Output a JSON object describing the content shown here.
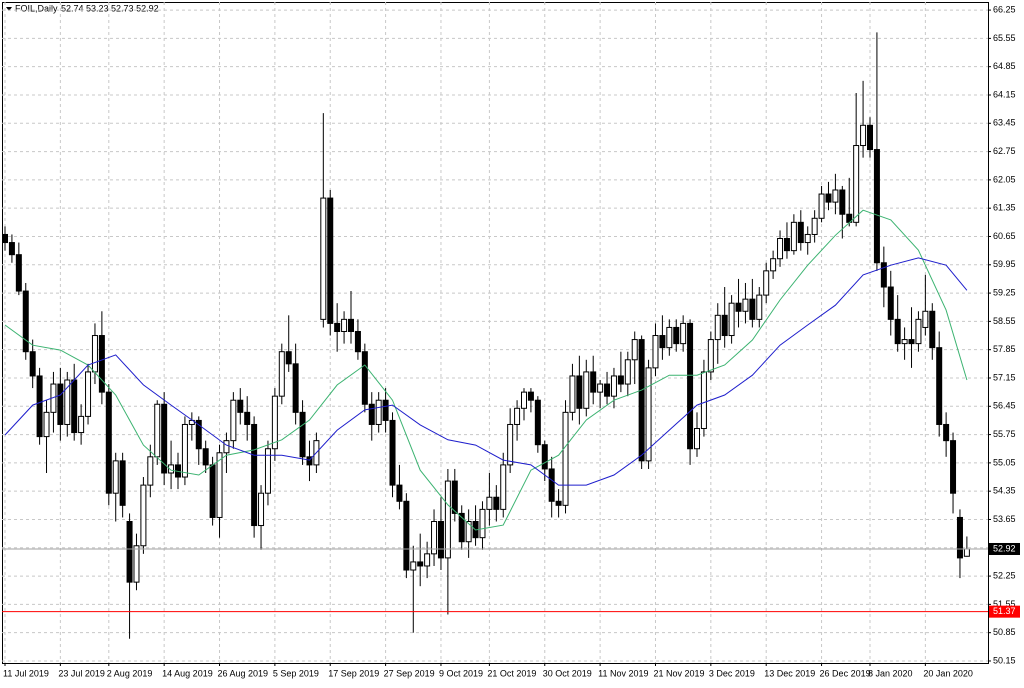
{
  "chart_data": {
    "type": "candlestick",
    "title": "FOIL,Daily",
    "ohlc_text": "52.74 53.23 52.73 52.92",
    "categories": [
      "11 Jul 2019",
      null,
      null,
      null,
      null,
      null,
      null,
      null,
      "23 Jul 2019",
      null,
      null,
      null,
      null,
      null,
      null,
      "2 Aug 2019",
      null,
      null,
      null,
      null,
      null,
      null,
      null,
      "14 Aug 2019",
      null,
      null,
      null,
      null,
      null,
      null,
      null,
      "26 Aug 2019",
      null,
      null,
      null,
      null,
      null,
      null,
      null,
      "5 Sep 2019",
      null,
      null,
      null,
      null,
      null,
      null,
      null,
      "17 Sep 2019",
      null,
      null,
      null,
      null,
      null,
      null,
      null,
      "27 Sep 2019",
      null,
      null,
      null,
      null,
      null,
      null,
      null,
      "9 Oct 2019",
      null,
      null,
      null,
      null,
      null,
      null,
      "21 Oct 2019",
      null,
      null,
      null,
      null,
      null,
      null,
      null,
      "30 Oct 2019",
      null,
      null,
      null,
      null,
      null,
      null,
      null,
      "11 Nov 2019",
      null,
      null,
      null,
      null,
      null,
      null,
      null,
      "21 Nov 2019",
      null,
      null,
      null,
      null,
      null,
      null,
      null,
      "3 Dec 2019",
      null,
      null,
      null,
      null,
      null,
      null,
      null,
      "13 Dec 2019",
      null,
      null,
      null,
      null,
      null,
      null,
      null,
      "26 Dec 2019",
      null,
      null,
      null,
      null,
      null,
      null,
      "8 Jan 2020",
      null,
      null,
      null,
      null,
      null,
      null,
      null,
      "20 Jan 2020",
      null,
      null,
      null,
      null,
      null,
      null
    ],
    "candles": [
      [
        60.7,
        60.9,
        60.3,
        60.5
      ],
      [
        60.5,
        60.7,
        60.0,
        60.2
      ],
      [
        60.2,
        60.5,
        59.2,
        59.3
      ],
      [
        59.3,
        59.5,
        57.6,
        57.8
      ],
      [
        57.8,
        58.1,
        56.9,
        57.2
      ],
      [
        57.2,
        57.4,
        55.5,
        55.7
      ],
      [
        55.7,
        56.6,
        54.8,
        56.3
      ],
      [
        56.3,
        57.3,
        55.8,
        57.0
      ],
      [
        57.0,
        57.4,
        55.6,
        56.0
      ],
      [
        56.0,
        57.3,
        55.7,
        57.1
      ],
      [
        57.1,
        57.5,
        55.6,
        55.8
      ],
      [
        55.8,
        56.5,
        55.5,
        56.2
      ],
      [
        56.2,
        57.5,
        56.0,
        57.3
      ],
      [
        57.3,
        58.5,
        57.0,
        58.2
      ],
      [
        58.2,
        58.8,
        56.5,
        56.8
      ],
      [
        56.8,
        57.0,
        54.0,
        54.3
      ],
      [
        54.3,
        55.3,
        53.6,
        55.1
      ],
      [
        55.1,
        55.3,
        53.7,
        54.0
      ],
      [
        53.6,
        53.8,
        50.7,
        52.1
      ],
      [
        52.1,
        53.3,
        51.9,
        53.0
      ],
      [
        53.0,
        54.7,
        52.8,
        54.5
      ],
      [
        54.5,
        55.5,
        54.2,
        55.2
      ],
      [
        55.2,
        56.6,
        55.0,
        56.5
      ],
      [
        56.5,
        56.8,
        54.5,
        54.8
      ],
      [
        54.8,
        55.6,
        54.4,
        55.0
      ],
      [
        55.0,
        55.3,
        54.4,
        54.7
      ],
      [
        54.7,
        56.2,
        54.5,
        56.0
      ],
      [
        56.0,
        56.3,
        55.6,
        56.1
      ],
      [
        56.1,
        56.2,
        55.0,
        55.4
      ],
      [
        55.4,
        55.6,
        54.8,
        55.0
      ],
      [
        55.0,
        55.2,
        53.5,
        53.7
      ],
      [
        53.7,
        55.5,
        53.2,
        55.3
      ],
      [
        55.3,
        55.8,
        54.8,
        55.6
      ],
      [
        55.6,
        56.8,
        55.4,
        56.6
      ],
      [
        56.6,
        56.9,
        56.0,
        56.3
      ],
      [
        56.3,
        56.7,
        55.6,
        56.0
      ],
      [
        56.0,
        56.2,
        53.2,
        53.5
      ],
      [
        53.5,
        54.5,
        52.9,
        54.3
      ],
      [
        54.3,
        55.6,
        54.0,
        55.4
      ],
      [
        55.4,
        56.9,
        55.1,
        56.7
      ],
      [
        56.7,
        58.0,
        56.5,
        57.8
      ],
      [
        57.8,
        58.7,
        57.3,
        57.5
      ],
      [
        57.5,
        58.0,
        56.0,
        56.3
      ],
      [
        56.3,
        56.6,
        55.0,
        55.2
      ],
      [
        55.2,
        55.6,
        54.6,
        55.0
      ],
      [
        55.0,
        55.8,
        54.8,
        55.6
      ],
      [
        58.6,
        63.7,
        58.4,
        61.6
      ],
      [
        61.6,
        61.8,
        58.2,
        58.5
      ],
      [
        58.5,
        59.0,
        57.8,
        58.3
      ],
      [
        58.3,
        58.8,
        58.0,
        58.6
      ],
      [
        58.6,
        59.3,
        58.0,
        58.3
      ],
      [
        58.3,
        58.6,
        57.6,
        57.8
      ],
      [
        57.8,
        58.0,
        56.3,
        56.5
      ],
      [
        56.5,
        56.8,
        55.6,
        56.0
      ],
      [
        56.0,
        56.8,
        55.8,
        56.6
      ],
      [
        56.6,
        56.9,
        55.8,
        56.1
      ],
      [
        56.1,
        56.3,
        54.2,
        54.5
      ],
      [
        54.5,
        55.0,
        53.9,
        54.1
      ],
      [
        54.1,
        54.3,
        52.2,
        52.4
      ],
      [
        52.4,
        53.0,
        50.85,
        52.6
      ],
      [
        52.6,
        53.3,
        52.0,
        52.5
      ],
      [
        52.5,
        53.1,
        52.2,
        52.8
      ],
      [
        52.8,
        53.9,
        52.5,
        53.6
      ],
      [
        53.6,
        54.2,
        52.4,
        52.7
      ],
      [
        52.7,
        54.9,
        51.3,
        54.6
      ],
      [
        54.6,
        54.9,
        53.6,
        53.8
      ],
      [
        53.8,
        54.0,
        52.9,
        53.1
      ],
      [
        53.1,
        53.9,
        52.7,
        53.6
      ],
      [
        53.6,
        54.0,
        53.0,
        53.2
      ],
      [
        53.2,
        54.1,
        52.9,
        53.9
      ],
      [
        53.9,
        54.8,
        53.5,
        54.2
      ],
      [
        54.2,
        54.5,
        53.6,
        53.9
      ],
      [
        53.9,
        55.3,
        53.7,
        55.0
      ],
      [
        55.0,
        56.4,
        54.8,
        56.0
      ],
      [
        56.0,
        56.6,
        55.6,
        56.4
      ],
      [
        56.4,
        56.9,
        56.1,
        56.8
      ],
      [
        56.8,
        56.9,
        56.3,
        56.6
      ],
      [
        56.6,
        56.7,
        55.3,
        55.5
      ],
      [
        55.5,
        55.6,
        54.6,
        54.9
      ],
      [
        54.9,
        55.2,
        53.7,
        54.1
      ],
      [
        54.1,
        54.4,
        53.7,
        54.0
      ],
      [
        54.0,
        56.6,
        53.8,
        56.3
      ],
      [
        56.3,
        57.5,
        56.1,
        57.2
      ],
      [
        57.2,
        57.7,
        56.0,
        56.4
      ],
      [
        56.4,
        57.6,
        56.2,
        57.3
      ],
      [
        57.3,
        57.7,
        56.5,
        56.8
      ],
      [
        56.8,
        57.1,
        56.4,
        57.0
      ],
      [
        57.0,
        57.3,
        56.5,
        56.7
      ],
      [
        56.7,
        57.4,
        56.4,
        57.2
      ],
      [
        57.2,
        57.8,
        56.8,
        57.0
      ],
      [
        57.0,
        57.8,
        56.7,
        57.6
      ],
      [
        57.6,
        58.3,
        57.0,
        58.1
      ],
      [
        58.1,
        58.2,
        54.9,
        55.1
      ],
      [
        55.1,
        57.6,
        54.9,
        57.4
      ],
      [
        57.4,
        58.5,
        57.2,
        58.2
      ],
      [
        58.2,
        58.7,
        57.6,
        57.9
      ],
      [
        57.9,
        58.6,
        57.7,
        58.4
      ],
      [
        58.4,
        58.6,
        57.8,
        58.0
      ],
      [
        58.0,
        58.7,
        57.8,
        58.5
      ],
      [
        58.5,
        58.6,
        55.0,
        55.4
      ],
      [
        55.4,
        56.3,
        55.2,
        55.9
      ],
      [
        55.9,
        57.6,
        55.7,
        57.3
      ],
      [
        57.3,
        58.3,
        57.1,
        58.1
      ],
      [
        58.1,
        59.0,
        57.5,
        58.7
      ],
      [
        58.7,
        59.4,
        57.9,
        58.2
      ],
      [
        58.2,
        59.2,
        58.0,
        59.0
      ],
      [
        59.0,
        59.6,
        58.4,
        58.8
      ],
      [
        58.8,
        59.5,
        58.5,
        59.1
      ],
      [
        59.1,
        59.6,
        58.4,
        58.6
      ],
      [
        58.6,
        59.4,
        58.4,
        59.2
      ],
      [
        59.2,
        60.0,
        59.0,
        59.8
      ],
      [
        59.8,
        60.3,
        59.6,
        60.1
      ],
      [
        60.1,
        60.8,
        59.9,
        60.6
      ],
      [
        60.6,
        61.0,
        60.1,
        60.3
      ],
      [
        60.3,
        61.2,
        60.2,
        61.0
      ],
      [
        61.0,
        61.3,
        60.3,
        60.5
      ],
      [
        60.5,
        60.9,
        60.2,
        60.7
      ],
      [
        60.7,
        61.3,
        60.5,
        61.1
      ],
      [
        61.1,
        61.9,
        61.0,
        61.7
      ],
      [
        61.7,
        62.0,
        61.3,
        61.5
      ],
      [
        61.5,
        62.2,
        61.2,
        61.8
      ],
      [
        61.8,
        61.9,
        60.6,
        61.2
      ],
      [
        61.2,
        62.1,
        60.9,
        61.0
      ],
      [
        61.0,
        64.2,
        60.9,
        62.9
      ],
      [
        62.9,
        64.5,
        62.6,
        63.4
      ],
      [
        63.4,
        63.6,
        62.6,
        62.8
      ],
      [
        62.8,
        65.7,
        59.8,
        60.0
      ],
      [
        60.0,
        60.4,
        58.9,
        59.4
      ],
      [
        59.4,
        59.8,
        58.2,
        58.6
      ],
      [
        58.6,
        59.2,
        57.8,
        58.0
      ],
      [
        58.0,
        58.4,
        57.6,
        58.1
      ],
      [
        58.1,
        58.9,
        57.4,
        58.0
      ],
      [
        58.0,
        58.8,
        57.8,
        58.6
      ],
      [
        58.4,
        59.7,
        58.2,
        58.8
      ],
      [
        58.8,
        59.0,
        57.6,
        57.9
      ],
      [
        57.9,
        58.3,
        55.7,
        56.0
      ],
      [
        56.0,
        56.3,
        55.2,
        55.6
      ],
      [
        55.6,
        55.8,
        53.8,
        54.3
      ],
      [
        53.7,
        53.9,
        52.2,
        52.7
      ],
      [
        52.74,
        53.23,
        52.73,
        52.92
      ]
    ],
    "bull_color": "#ffffff",
    "bear_color": "#000000",
    "overlays": [
      {
        "color": "#3cb371",
        "x": [
          0,
          4,
          8,
          12,
          16,
          20,
          24,
          28,
          32,
          36,
          40,
          44,
          48,
          52,
          56,
          60,
          64,
          68,
          72,
          76,
          80,
          84,
          88,
          92,
          96,
          100,
          104,
          108,
          112,
          116,
          120,
          124,
          128,
          132,
          136,
          139
        ],
        "values": [
          58.46,
          57.96,
          57.84,
          57.47,
          56.73,
          55.49,
          54.87,
          54.75,
          55.24,
          55.37,
          55.62,
          56.11,
          56.98,
          57.47,
          56.6,
          54.87,
          54.01,
          53.39,
          53.51,
          54.87,
          55.24,
          56.11,
          56.6,
          56.85,
          57.22,
          57.22,
          57.47,
          58.09,
          59.08,
          59.94,
          60.68,
          61.3,
          61.06,
          60.31,
          58.83,
          57.1
        ]
      },
      {
        "color": "#1e1ecc",
        "x": [
          0,
          4,
          8,
          12,
          16,
          20,
          24,
          28,
          32,
          36,
          40,
          44,
          48,
          52,
          56,
          60,
          64,
          68,
          72,
          76,
          80,
          84,
          88,
          92,
          96,
          100,
          104,
          108,
          112,
          116,
          120,
          124,
          128,
          132,
          136,
          139
        ],
        "values": [
          55.74,
          56.48,
          56.73,
          57.47,
          57.72,
          56.98,
          56.48,
          55.99,
          55.49,
          55.24,
          55.24,
          55.12,
          55.86,
          56.36,
          56.48,
          55.99,
          55.62,
          55.49,
          55.12,
          55.0,
          54.5,
          54.5,
          54.75,
          55.24,
          55.86,
          56.48,
          56.73,
          57.22,
          57.96,
          58.46,
          58.95,
          59.7,
          59.94,
          60.12,
          59.94,
          59.32
        ]
      }
    ],
    "current_price": 52.92,
    "alert_line": {
      "value": 51.37,
      "color": "#ff0000"
    },
    "ylim": [
      50.1,
      66.45
    ],
    "yticks": [
      66.25,
      65.55,
      64.85,
      64.15,
      63.45,
      62.75,
      62.05,
      61.35,
      60.65,
      59.95,
      59.25,
      58.55,
      57.85,
      57.15,
      56.45,
      55.75,
      55.05,
      54.35,
      53.65,
      52.95,
      52.25,
      51.55,
      50.85,
      50.15
    ],
    "grid": true
  }
}
